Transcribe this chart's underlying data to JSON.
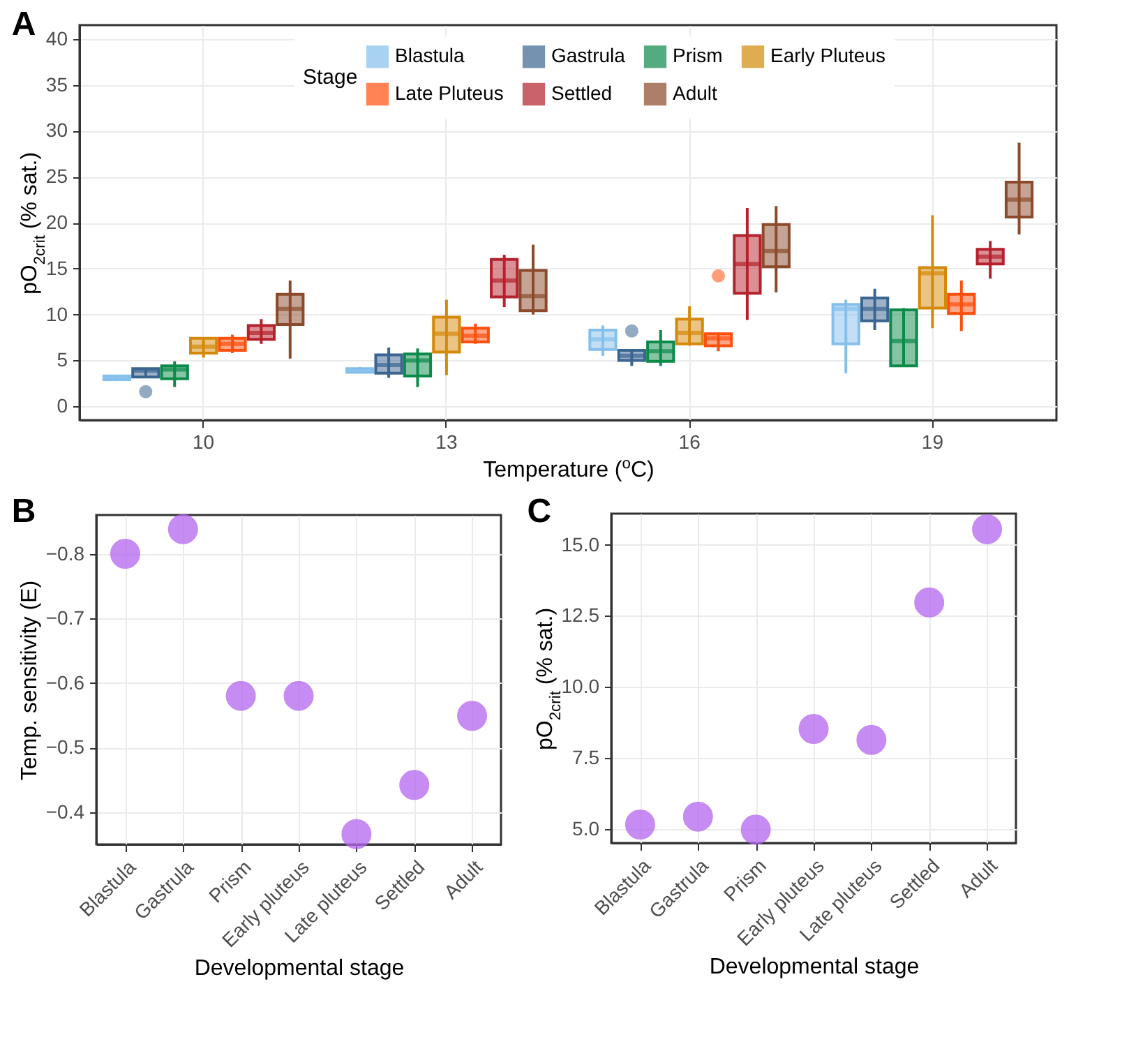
{
  "chart_data": [
    {
      "type": "box",
      "title": "A",
      "xlabel": "Temperature ($^{o}$C)",
      "ylabel": "pO$_{2crit}$ (% sat.)",
      "legend_title": "Stage",
      "legend": "top",
      "grid": true,
      "categories": [
        "10",
        "13",
        "16",
        "19"
      ],
      "ylim": [
        -1.5,
        41.5
      ],
      "yticks": [
        0,
        5,
        10,
        15,
        20,
        25,
        30,
        35,
        40
      ],
      "series": [
        {
          "name": "Blastula",
          "color": "#85c0ec",
          "boxes": [
            {
              "low": 2.8,
              "q1": 2.9,
              "median": 3.1,
              "q3": 3.3,
              "high": 3.4
            },
            {
              "low": 3.6,
              "q1": 3.7,
              "median": 3.9,
              "q3": 4.1,
              "high": 4.3
            },
            {
              "low": 5.5,
              "q1": 6.2,
              "median": 7.3,
              "q3": 8.3,
              "high": 8.8
            },
            {
              "low": 3.6,
              "q1": 6.8,
              "median": 10.6,
              "q3": 11.1,
              "high": 11.6
            }
          ]
        },
        {
          "name": "Gastrula",
          "color": "#3b6591",
          "boxes": [
            {
              "low": 3.1,
              "q1": 3.2,
              "median": 3.9,
              "q3": 4.1,
              "high": 4.2,
              "outliers": [
                1.6
              ]
            },
            {
              "low": 3.1,
              "q1": 3.6,
              "median": 4.5,
              "q3": 5.6,
              "high": 6.4
            },
            {
              "low": 4.4,
              "q1": 5.0,
              "median": 5.5,
              "q3": 6.1,
              "high": 6.1,
              "outliers": [
                8.2
              ]
            },
            {
              "low": 8.3,
              "q1": 9.3,
              "median": 10.6,
              "q3": 11.8,
              "high": 12.8
            }
          ]
        },
        {
          "name": "Prism",
          "color": "#0b8a4a",
          "boxes": [
            {
              "low": 2.1,
              "q1": 3.0,
              "median": 4.0,
              "q3": 4.4,
              "high": 4.9
            },
            {
              "low": 2.1,
              "q1": 3.3,
              "median": 5.0,
              "q3": 5.7,
              "high": 6.3
            },
            {
              "low": 4.4,
              "q1": 4.9,
              "median": 6.0,
              "q3": 7.0,
              "high": 8.3
            },
            {
              "low": 4.4,
              "q1": 4.4,
              "median": 7.1,
              "q3": 10.5,
              "high": 10.7
            }
          ]
        },
        {
          "name": "Early Pluteus",
          "color": "#d4890a",
          "boxes": [
            {
              "low": 5.3,
              "q1": 5.8,
              "median": 6.5,
              "q3": 7.4,
              "high": 7.5
            },
            {
              "low": 3.4,
              "q1": 5.9,
              "median": 7.9,
              "q3": 9.7,
              "high": 11.6
            },
            {
              "low": 6.6,
              "q1": 6.8,
              "median": 8.0,
              "q3": 9.5,
              "high": 10.9
            },
            {
              "low": 8.5,
              "q1": 10.7,
              "median": 14.5,
              "q3": 15.1,
              "high": 20.8
            }
          ]
        },
        {
          "name": "Late Pluteus",
          "color": "#ff4f0c",
          "boxes": [
            {
              "low": 5.8,
              "q1": 6.1,
              "median": 6.8,
              "q3": 7.4,
              "high": 7.8
            },
            {
              "low": 6.8,
              "q1": 7.0,
              "median": 7.7,
              "q3": 8.5,
              "high": 9.0
            },
            {
              "low": 6.0,
              "q1": 6.6,
              "median": 7.4,
              "q3": 7.9,
              "high": 7.9,
              "outliers": [
                14.2
              ]
            },
            {
              "low": 8.2,
              "q1": 10.1,
              "median": 11.1,
              "q3": 12.2,
              "high": 13.7
            }
          ]
        },
        {
          "name": "Settled",
          "color": "#b5212c",
          "boxes": [
            {
              "low": 6.8,
              "q1": 7.3,
              "median": 8.0,
              "q3": 8.8,
              "high": 9.5
            },
            {
              "low": 10.8,
              "q1": 11.9,
              "median": 13.7,
              "q3": 16.0,
              "high": 16.5
            },
            {
              "low": 9.4,
              "q1": 12.3,
              "median": 15.5,
              "q3": 18.6,
              "high": 21.6
            },
            {
              "low": 13.9,
              "q1": 15.5,
              "median": 16.3,
              "q3": 17.1,
              "high": 18.0
            }
          ]
        },
        {
          "name": "Adult",
          "color": "#8b4a2b",
          "boxes": [
            {
              "low": 5.2,
              "q1": 8.9,
              "median": 10.6,
              "q3": 12.2,
              "high": 13.7
            },
            {
              "low": 10.0,
              "q1": 10.4,
              "median": 12.0,
              "q3": 14.8,
              "high": 17.6
            },
            {
              "low": 12.4,
              "q1": 15.2,
              "median": 16.9,
              "q3": 19.8,
              "high": 21.8
            },
            {
              "low": 18.7,
              "q1": 20.6,
              "median": 22.5,
              "q3": 24.4,
              "high": 28.7
            }
          ]
        }
      ]
    },
    {
      "type": "scatter",
      "title": "B",
      "xlabel": "Developmental stage",
      "ylabel": "Temp. sensitivity (E)",
      "grid": true,
      "marker": "circle",
      "color": "#b366f0",
      "categories": [
        "Blastula",
        "Gastrula",
        "Prism",
        "Early pluteus",
        "Late pluteus",
        "Settled",
        "Adult"
      ],
      "values": [
        -0.8,
        -0.838,
        -0.58,
        -0.58,
        -0.366,
        -0.442,
        -0.549
      ],
      "ylim": [
        -0.35,
        -0.86
      ],
      "yticks": [
        -0.8,
        -0.7,
        -0.6,
        -0.5,
        -0.4
      ]
    },
    {
      "type": "scatter",
      "title": "C",
      "xlabel": "Developmental stage",
      "ylabel": "pO$_{2crit}$ (% sat.)",
      "grid": true,
      "marker": "circle",
      "color": "#b366f0",
      "categories": [
        "Blastula",
        "Gastrula",
        "Prism",
        "Early pluteus",
        "Late pluteus",
        "Settled",
        "Adult"
      ],
      "values": [
        5.15,
        5.43,
        4.97,
        8.52,
        8.13,
        12.97,
        15.55
      ],
      "ylim": [
        4.5,
        16.1
      ],
      "yticks": [
        {
          "value": 5,
          "label": "5.0"
        },
        {
          "value": 7.5,
          "label": "7.5"
        },
        {
          "value": 10,
          "label": "10.0"
        },
        {
          "value": 12.5,
          "label": "12.5"
        },
        {
          "value": 15,
          "label": "15.0"
        }
      ]
    }
  ]
}
